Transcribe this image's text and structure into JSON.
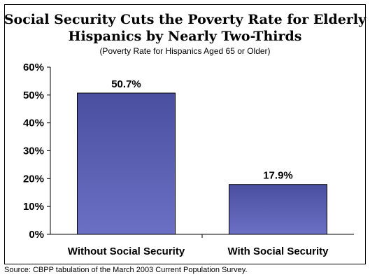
{
  "chart_data": {
    "type": "bar",
    "title_line1": "Social Security Cuts the Poverty Rate for Elderly",
    "title_line2": "Hispanics by Nearly Two-Thirds",
    "subtitle": "(Poverty Rate for Hispanics Aged 65 or Older)",
    "categories": [
      "Without Social Security",
      "With Social Security"
    ],
    "values": [
      50.7,
      17.9
    ],
    "data_labels": [
      "50.7%",
      "17.9%"
    ],
    "yticks": [
      "0%",
      "10%",
      "20%",
      "30%",
      "40%",
      "50%",
      "60%"
    ],
    "ylim": [
      0,
      60
    ],
    "xlabel": "",
    "ylabel": "",
    "grid": false,
    "bar_color_top": "#4a4fa0",
    "bar_color_bottom": "#6b70c4",
    "source": "Source: CBPP tabulation of the March 2003 Current Population Survey."
  }
}
